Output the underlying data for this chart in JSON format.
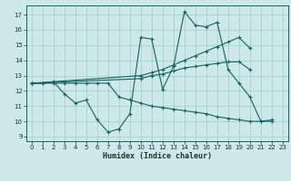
{
  "xlabel": "Humidex (Indice chaleur)",
  "bg_color": "#cce8e8",
  "grid_color": "#9ecece",
  "line_color": "#1a6060",
  "xlim": [
    -0.5,
    23.5
  ],
  "ylim": [
    8.7,
    17.6
  ],
  "yticks": [
    9,
    10,
    11,
    12,
    13,
    14,
    15,
    16,
    17
  ],
  "xticks": [
    0,
    1,
    2,
    3,
    4,
    5,
    6,
    7,
    8,
    9,
    10,
    11,
    12,
    13,
    14,
    15,
    16,
    17,
    18,
    19,
    20,
    21,
    22,
    23
  ],
  "lines": [
    {
      "x": [
        0,
        1,
        2,
        3,
        4,
        5,
        6,
        7,
        8,
        9,
        10,
        11,
        12,
        13,
        14,
        15,
        16,
        17,
        18,
        19,
        20,
        21,
        22
      ],
      "y": [
        12.5,
        12.5,
        12.6,
        11.8,
        11.2,
        11.4,
        10.1,
        9.3,
        9.5,
        10.5,
        15.5,
        15.4,
        12.1,
        13.6,
        17.2,
        16.3,
        16.2,
        16.5,
        13.4,
        12.5,
        11.6,
        10.0,
        10.1
      ]
    },
    {
      "x": [
        0,
        10,
        11,
        12,
        13,
        14,
        15,
        16,
        17,
        18,
        19,
        20
      ],
      "y": [
        12.5,
        13.0,
        13.2,
        13.4,
        13.7,
        14.0,
        14.3,
        14.6,
        14.9,
        15.2,
        15.5,
        14.8
      ]
    },
    {
      "x": [
        0,
        10,
        11,
        12,
        13,
        14,
        15,
        16,
        17,
        18,
        19,
        20
      ],
      "y": [
        12.5,
        12.8,
        13.0,
        13.1,
        13.3,
        13.5,
        13.6,
        13.7,
        13.8,
        13.9,
        13.9,
        13.4
      ]
    },
    {
      "x": [
        0,
        1,
        2,
        3,
        4,
        5,
        6,
        7,
        8,
        9,
        10,
        11,
        12,
        13,
        14,
        15,
        16,
        17,
        18,
        19,
        20,
        21,
        22
      ],
      "y": [
        12.5,
        12.5,
        12.5,
        12.5,
        12.5,
        12.5,
        12.5,
        12.5,
        11.6,
        11.4,
        11.2,
        11.0,
        10.9,
        10.8,
        10.7,
        10.6,
        10.5,
        10.3,
        10.2,
        10.1,
        10.0,
        10.0,
        10.0
      ]
    }
  ]
}
